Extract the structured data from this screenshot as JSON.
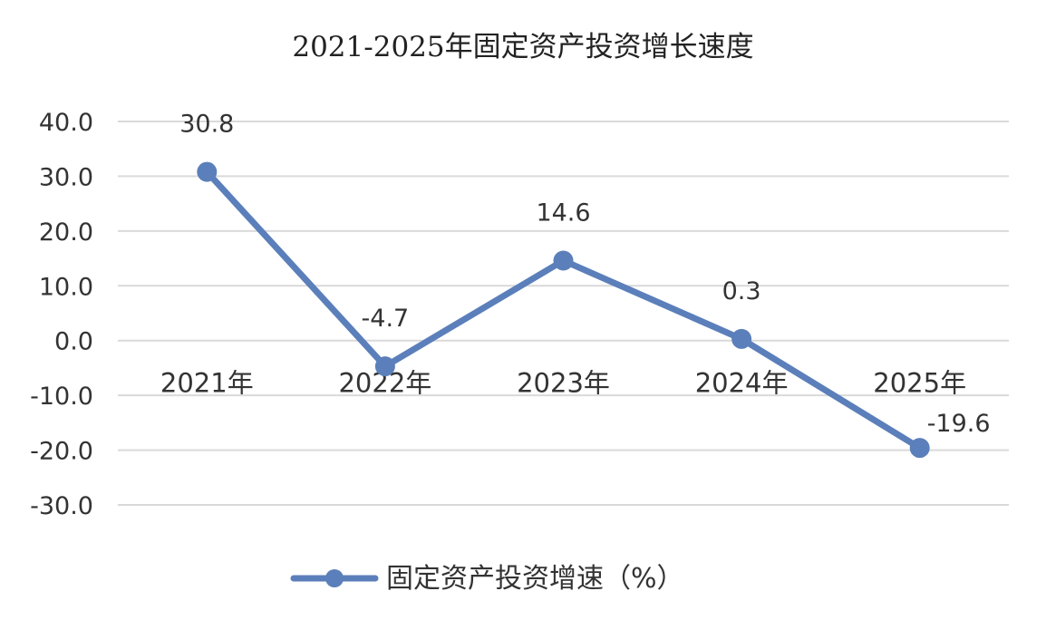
{
  "chart_data": {
    "type": "line",
    "title": "2021-2025年固定资产投资增长速度",
    "categories": [
      "2021年",
      "2022年",
      "2023年",
      "2024年",
      "2025年"
    ],
    "series": [
      {
        "name": "固定资产投资增速（%）",
        "values": [
          30.8,
          -4.7,
          14.6,
          0.3,
          -19.6
        ],
        "data_labels": [
          "30.8",
          "-4.7",
          "14.6",
          "0.3",
          "-19.6"
        ],
        "color": "#5b7fba"
      }
    ],
    "ylim": [
      -30,
      40
    ],
    "yticks": [
      40,
      30,
      20,
      10,
      0,
      -10,
      -20,
      -30
    ],
    "ytick_labels": [
      "40.0",
      "30.0",
      "20.0",
      "10.0",
      "0.0",
      "-10.0",
      "-20.0",
      "-30.0"
    ],
    "grid": true,
    "gridline_color": "#d9d9d9",
    "legend_position": "bottom",
    "xlabel": "",
    "ylabel": ""
  }
}
